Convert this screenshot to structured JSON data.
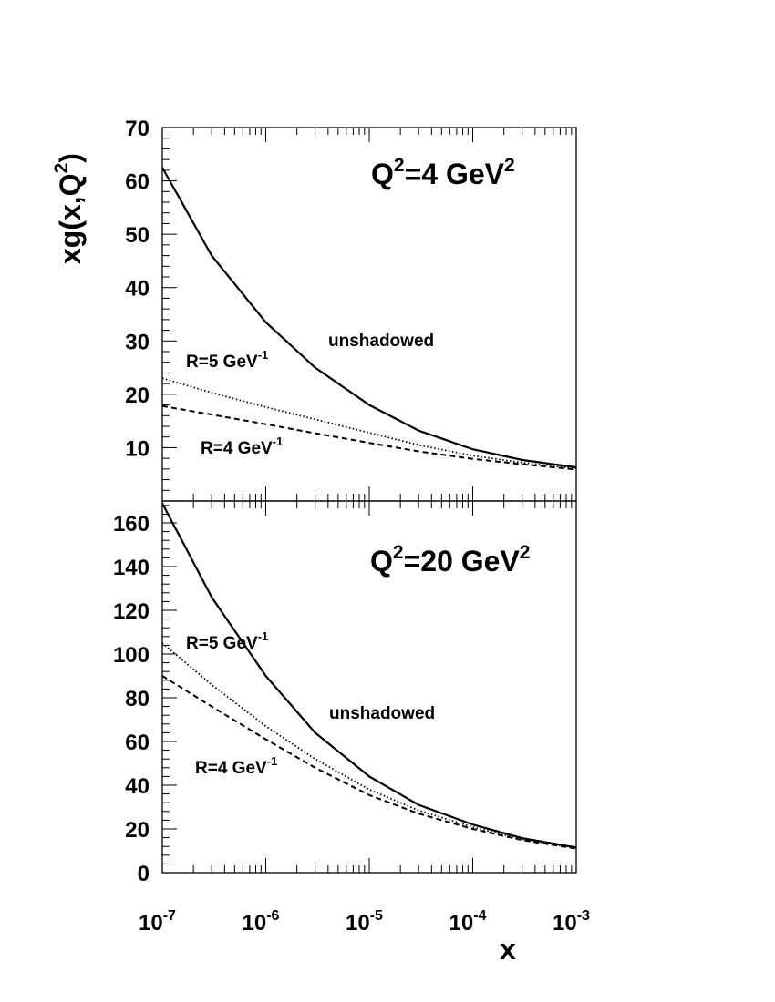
{
  "chart_data": [
    {
      "type": "line",
      "panel": "top",
      "title": "Q",
      "title_sup_1": "2",
      "title_mid": "=4 GeV",
      "title_sup_2": "2",
      "ylabel": "xg(x,Q",
      "ylabel_sup": "2",
      "ylabel_end": ")",
      "xscale": "log",
      "xlim": [
        1e-07,
        0.001
      ],
      "ylim": [
        0,
        70
      ],
      "y_ticks": [
        10,
        20,
        30,
        40,
        50,
        60,
        70
      ],
      "y_tick_labels": [
        "10",
        "20",
        "30",
        "40",
        "50",
        "60",
        "70"
      ],
      "x": [
        1e-07,
        3e-07,
        1e-06,
        3e-06,
        1e-05,
        3e-05,
        0.0001,
        0.0003,
        0.001
      ],
      "series": [
        {
          "label": "unshadowed",
          "line_style": "solid",
          "values": [
            62.5,
            46.0,
            33.5,
            25.0,
            18.0,
            13.2,
            9.7,
            7.7,
            6.3
          ]
        },
        {
          "label_main": "R=5 GeV",
          "label_sup": "-1",
          "line_style": "dotted",
          "values": [
            23.0,
            20.3,
            17.6,
            15.3,
            12.8,
            10.5,
            8.5,
            7.2,
            6.1
          ]
        },
        {
          "label_main": "R=4 GeV",
          "label_sup": "-1",
          "line_style": "dashed",
          "values": [
            17.8,
            16.2,
            14.4,
            12.7,
            10.9,
            9.3,
            7.9,
            6.9,
            5.9
          ]
        }
      ]
    },
    {
      "type": "line",
      "panel": "bottom",
      "title": "Q",
      "title_sup_1": "2",
      "title_mid": "=20 GeV",
      "title_sup_2": "2",
      "xlabel": "x",
      "xscale": "log",
      "xlim": [
        1e-07,
        0.001
      ],
      "ylim": [
        0,
        170
      ],
      "y_ticks": [
        0,
        20,
        40,
        60,
        80,
        100,
        120,
        140,
        160
      ],
      "y_tick_labels": [
        "0",
        "20",
        "40",
        "60",
        "80",
        "100",
        "120",
        "140",
        "160"
      ],
      "x_tick_labels": [
        {
          "base": "10",
          "exp": "-7"
        },
        {
          "base": "10",
          "exp": "-6"
        },
        {
          "base": "10",
          "exp": "-5"
        },
        {
          "base": "10",
          "exp": "-4"
        },
        {
          "base": "10",
          "exp": "-3"
        }
      ],
      "x": [
        1e-07,
        3e-07,
        1e-06,
        3e-06,
        1e-05,
        3e-05,
        0.0001,
        0.0003,
        0.001
      ],
      "series": [
        {
          "label": "unshadowed",
          "line_style": "solid",
          "values": [
            169.0,
            126.0,
            90.0,
            64.0,
            44.0,
            31.0,
            22.0,
            15.8,
            11.5
          ]
        },
        {
          "label_main": "R=5 GeV",
          "label_sup": "-1",
          "line_style": "dotted",
          "values": [
            105.0,
            86.0,
            67.0,
            52.0,
            38.0,
            28.5,
            20.8,
            15.3,
            11.3
          ]
        },
        {
          "label_main": "R=4 GeV",
          "label_sup": "-1",
          "line_style": "dashed",
          "values": [
            90.0,
            76.0,
            61.0,
            48.0,
            35.5,
            27.0,
            20.0,
            14.9,
            11.0
          ]
        }
      ]
    }
  ]
}
